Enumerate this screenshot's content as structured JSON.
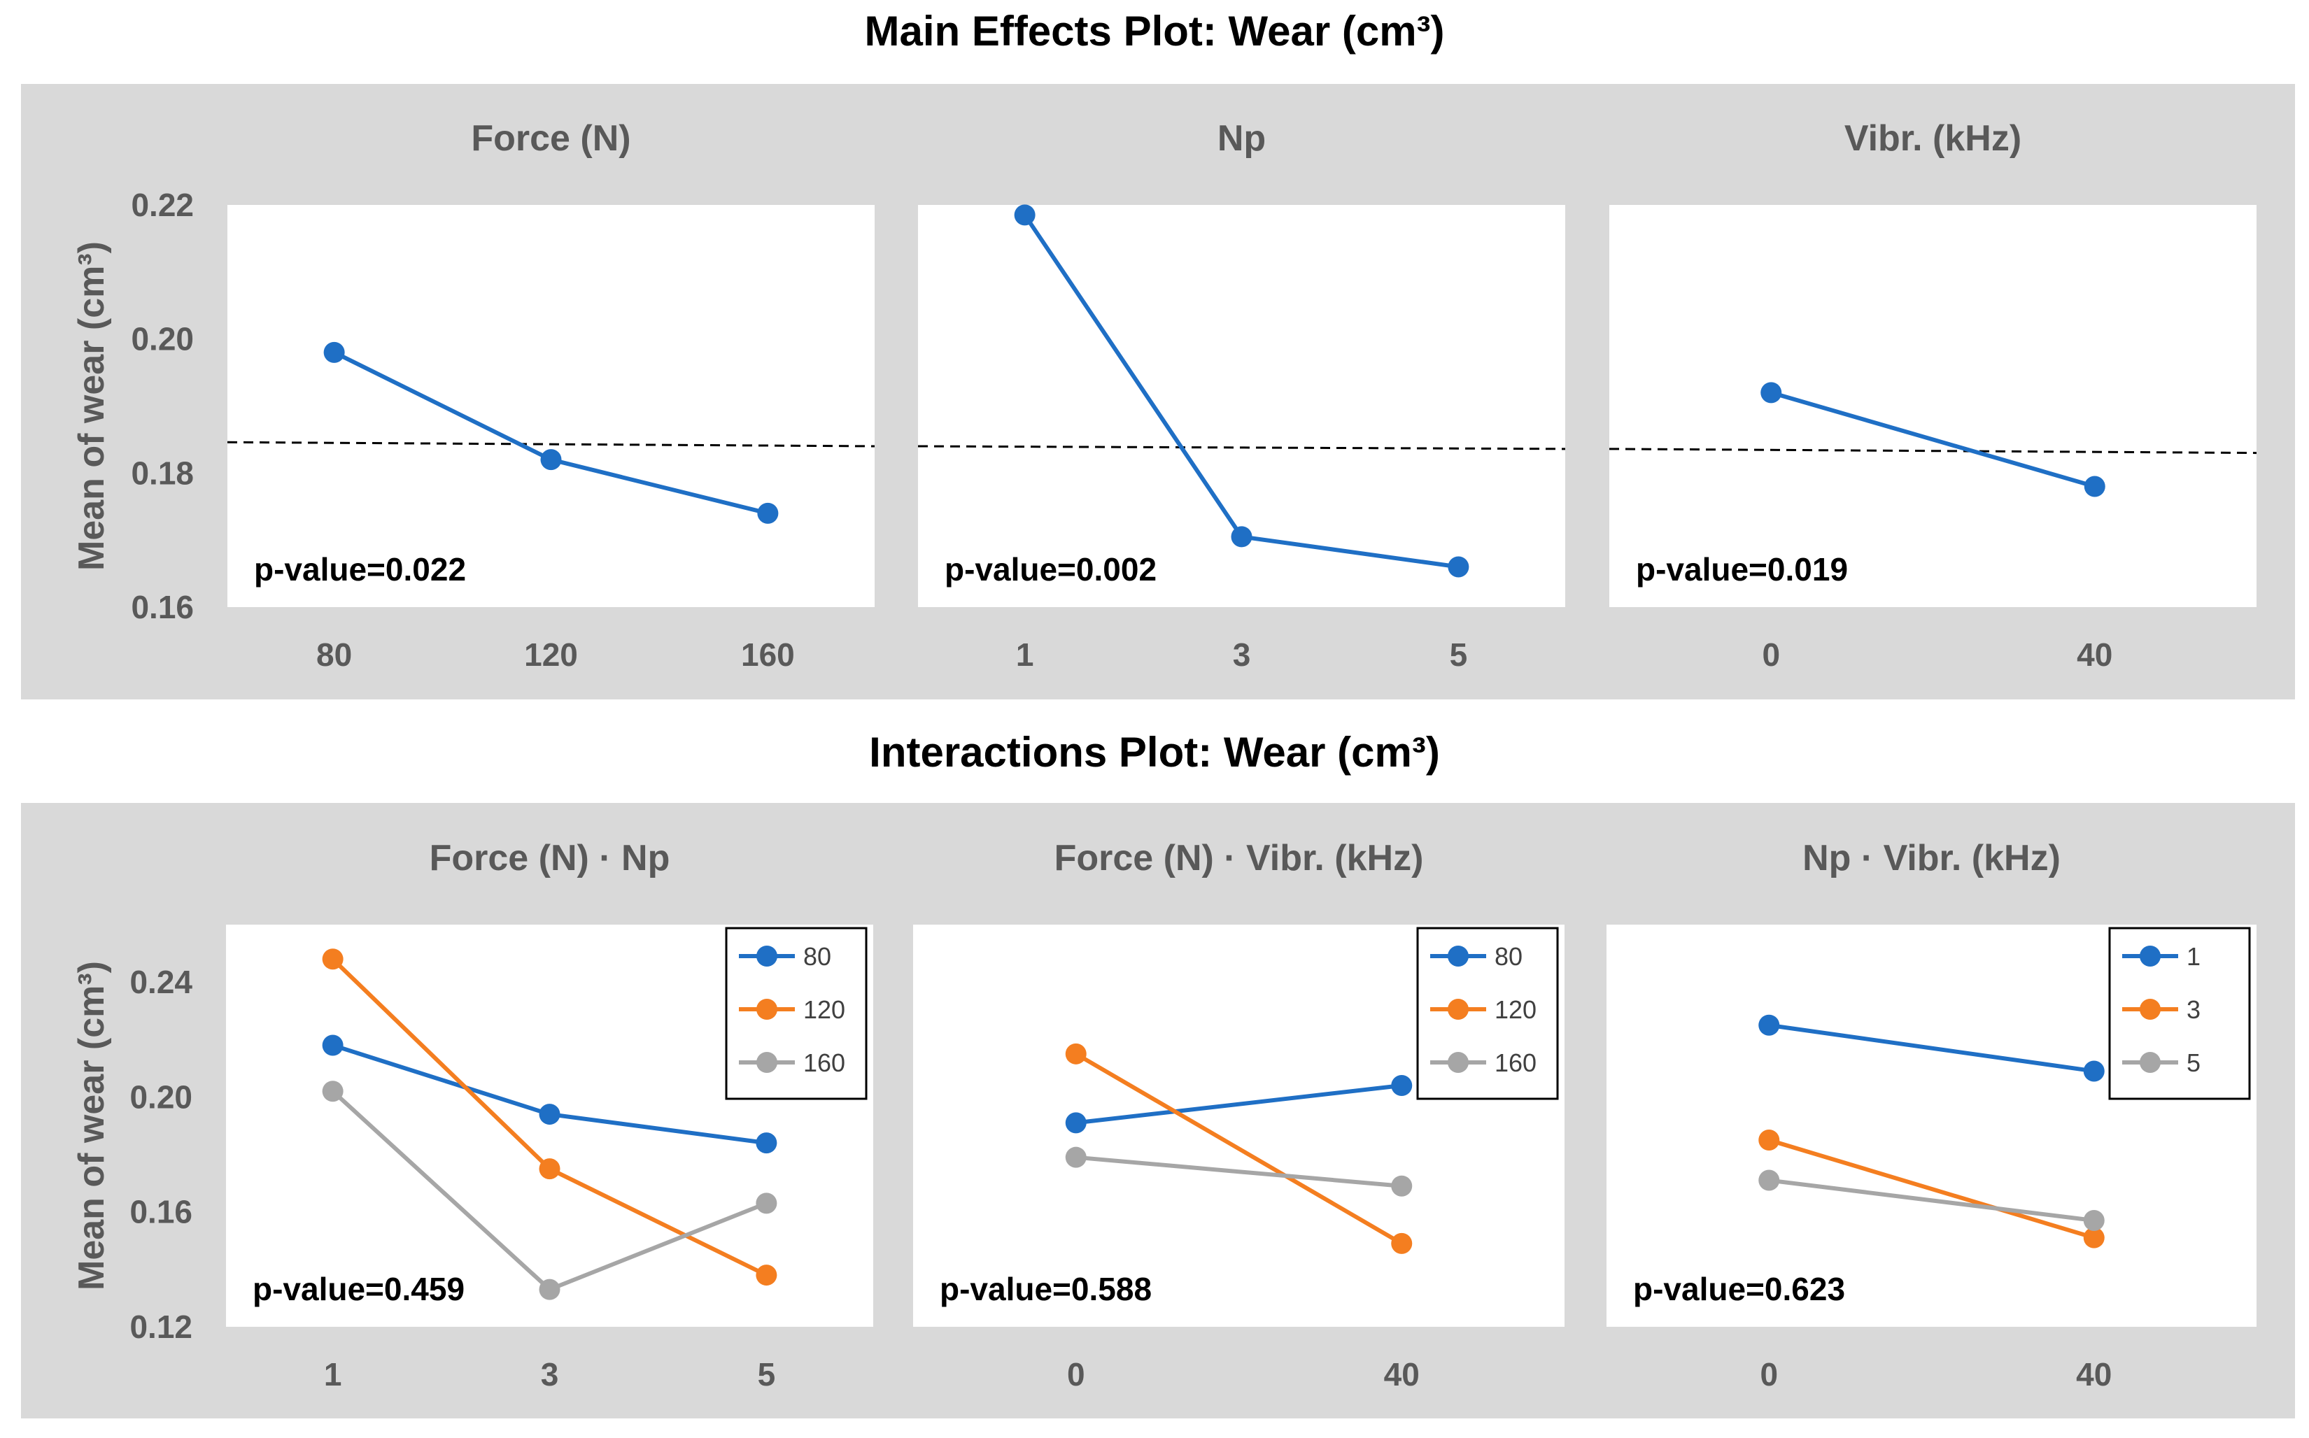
{
  "main_title": "Main Effects Plot: Wear (cm³)",
  "interaction_title": "Interactions Plot: Wear (cm³)",
  "colors": {
    "blue": "#1f6fc5",
    "orange": "#f47e20",
    "gray": "#a6a6a6",
    "band": "#d9d9d9",
    "panel": "#ffffff",
    "mean_line": "#000000"
  },
  "chart_data": [
    {
      "type": "line",
      "row": "main",
      "title": "Force (N)",
      "ylabel": "Mean of wear (cm³)",
      "ylim": [
        0.16,
        0.22
      ],
      "yticks": [
        "0.16",
        "0.18",
        "0.20",
        "0.22"
      ],
      "categories": [
        "80",
        "120",
        "160"
      ],
      "series": [
        {
          "name": "Force (N)",
          "color": "blue",
          "values": [
            0.198,
            0.182,
            0.174
          ]
        }
      ],
      "reference_line": [
        0.1846,
        0.184
      ],
      "p_value": "p-value=0.022"
    },
    {
      "type": "line",
      "row": "main",
      "title": "Np",
      "ylabel": "",
      "ylim": [
        0.16,
        0.22
      ],
      "categories": [
        "1",
        "3",
        "5"
      ],
      "series": [
        {
          "name": "Np",
          "color": "blue",
          "values": [
            0.2185,
            0.1705,
            0.166
          ]
        }
      ],
      "reference_line": [
        0.184,
        0.1836
      ],
      "p_value": "p-value=0.002"
    },
    {
      "type": "line",
      "row": "main",
      "title": "Vibr. (kHz)",
      "ylabel": "",
      "ylim": [
        0.16,
        0.22
      ],
      "categories": [
        "0",
        "40"
      ],
      "series": [
        {
          "name": "Vibr. (kHz)",
          "color": "blue",
          "values": [
            0.192,
            0.178
          ]
        }
      ],
      "reference_line": [
        0.1836,
        0.183
      ],
      "p_value": "p-value=0.019"
    },
    {
      "type": "line",
      "row": "interaction",
      "title": "Force (N) · Np",
      "ylabel": "Mean of wear (cm³)",
      "ylim": [
        0.12,
        0.26
      ],
      "yticks": [
        "0.12",
        "0.16",
        "0.20",
        "0.24"
      ],
      "categories": [
        "1",
        "3",
        "5"
      ],
      "series": [
        {
          "name": "80",
          "color": "blue",
          "values": [
            0.218,
            0.194,
            0.184
          ]
        },
        {
          "name": "120",
          "color": "orange",
          "values": [
            0.248,
            0.175,
            0.138
          ]
        },
        {
          "name": "160",
          "color": "gray",
          "values": [
            0.202,
            0.133,
            0.163
          ]
        }
      ],
      "p_value": "p-value=0.459"
    },
    {
      "type": "line",
      "row": "interaction",
      "title": "Force (N) · Vibr. (kHz)",
      "ylabel": "",
      "ylim": [
        0.12,
        0.26
      ],
      "categories": [
        "0",
        "40"
      ],
      "series": [
        {
          "name": "80",
          "color": "blue",
          "values": [
            0.191,
            0.204
          ]
        },
        {
          "name": "120",
          "color": "orange",
          "values": [
            0.215,
            0.149
          ]
        },
        {
          "name": "160",
          "color": "gray",
          "values": [
            0.179,
            0.169
          ]
        }
      ],
      "p_value": "p-value=0.588"
    },
    {
      "type": "line",
      "row": "interaction",
      "title": "Np · Vibr. (kHz)",
      "ylabel": "",
      "ylim": [
        0.12,
        0.26
      ],
      "categories": [
        "0",
        "40"
      ],
      "series": [
        {
          "name": "1",
          "color": "blue",
          "values": [
            0.225,
            0.209
          ]
        },
        {
          "name": "3",
          "color": "orange",
          "values": [
            0.185,
            0.151
          ]
        },
        {
          "name": "5",
          "color": "gray",
          "values": [
            0.171,
            0.157
          ]
        }
      ],
      "p_value": "p-value=0.623"
    }
  ]
}
